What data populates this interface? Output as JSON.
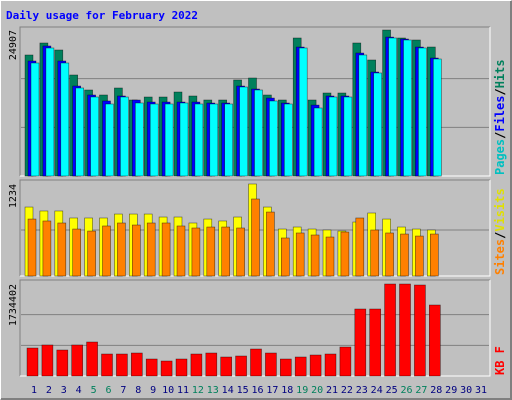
{
  "title": "Daily usage for February 2022",
  "chart_data": [
    {
      "type": "bar",
      "ylim": [
        0,
        24907
      ],
      "yticks": [
        24907
      ],
      "grid_divisions": 3,
      "legend_separator": "/",
      "series": [
        {
          "name": "Hits",
          "color": "#00805c",
          "label_color": "#00805c",
          "values": [
            20643,
            22690,
            21496,
            17231,
            14672,
            13819,
            15013,
            12966,
            13477,
            13477,
            14330,
            13648,
            12966,
            12966,
            16378,
            16719,
            13819,
            12966,
            23543,
            12966,
            14160,
            14160,
            22690,
            19790,
            24907,
            23543,
            23202,
            22007,
            null,
            null,
            null
          ]
        },
        {
          "name": "Files",
          "color": "#0000ff",
          "label_color": "#0000ff",
          "values": [
            19620,
            22180,
            19620,
            15350,
            13820,
            12800,
            13650,
            12960,
            12620,
            12620,
            12620,
            12620,
            12450,
            12450,
            15350,
            14840,
            13300,
            12450,
            22000,
            12100,
            13650,
            13650,
            20980,
            17740,
            23700,
            23370,
            22000,
            20130,
            null,
            null,
            null
          ]
        },
        {
          "name": "Pages",
          "color": "#00ffff",
          "label_color": "#00c0c0",
          "values": [
            19278,
            21837,
            19278,
            15013,
            13477,
            12283,
            13477,
            12454,
            12283,
            12283,
            12454,
            12283,
            12283,
            12283,
            15183,
            14672,
            12795,
            12283,
            21837,
            11601,
            13477,
            13477,
            20643,
            17572,
            23543,
            23202,
            21837,
            19960,
            null,
            null,
            null
          ]
        }
      ]
    },
    {
      "type": "bar",
      "ylim": [
        0,
        1234
      ],
      "yticks": [
        1234
      ],
      "grid_divisions": 2,
      "legend_separator": "/",
      "series": [
        {
          "name": "Visits",
          "color": "#ffff00",
          "label_color": "#e0e000",
          "values": [
            925,
            872,
            872,
            778,
            778,
            778,
            831,
            831,
            831,
            791,
            791,
            711,
            764,
            738,
            791,
            1234,
            925,
            630,
            657,
            630,
            617,
            603,
            724,
            845,
            764,
            657,
            630,
            617,
            null,
            null,
            null
          ]
        },
        {
          "name": "Sites",
          "color": "#ff8000",
          "label_color": "#ff8000",
          "values": [
            764,
            738,
            711,
            630,
            603,
            671,
            711,
            684,
            711,
            711,
            671,
            644,
            657,
            657,
            644,
            1033,
            858,
            510,
            577,
            550,
            523,
            590,
            778,
            617,
            577,
            563,
            536,
            563,
            null,
            null,
            null
          ]
        }
      ]
    },
    {
      "type": "bar",
      "ylim": [
        0,
        1734402
      ],
      "yticks": [
        1734402
      ],
      "grid_divisions": 3,
      "categories": [
        "1",
        "2",
        "3",
        "4",
        "5",
        "6",
        "7",
        "8",
        "9",
        "10",
        "11",
        "12",
        "13",
        "14",
        "15",
        "16",
        "17",
        "18",
        "19",
        "20",
        "21",
        "22",
        "23",
        "24",
        "25",
        "26",
        "27",
        "28",
        "29",
        "30",
        "31"
      ],
      "category_colors": [
        "#000080",
        "#000080",
        "#000080",
        "#000080",
        "#00805c",
        "#00805c",
        "#000080",
        "#000080",
        "#000080",
        "#000080",
        "#000080",
        "#00805c",
        "#00805c",
        "#000080",
        "#000080",
        "#000080",
        "#000080",
        "#000080",
        "#00805c",
        "#00805c",
        "#000080",
        "#000080",
        "#000080",
        "#000080",
        "#000080",
        "#00805c",
        "#00805c",
        "#000080",
        "#000080",
        "#000080",
        "#000080"
      ],
      "series": [
        {
          "name": "KB F",
          "color": "#ff0000",
          "label_color": "#ff0000",
          "values": [
            527862,
            584418,
            490157,
            584418,
            640975,
            414748,
            414748,
            433601,
            320487,
            282783,
            320487,
            414748,
            433601,
            358192,
            377044,
            509009,
            433601,
            320487,
            358192,
            395896,
            414748,
            546714,
            1263097,
            1263097,
            1734402,
            1734402,
            1715550,
            1338506,
            null,
            null,
            null
          ]
        }
      ]
    }
  ]
}
